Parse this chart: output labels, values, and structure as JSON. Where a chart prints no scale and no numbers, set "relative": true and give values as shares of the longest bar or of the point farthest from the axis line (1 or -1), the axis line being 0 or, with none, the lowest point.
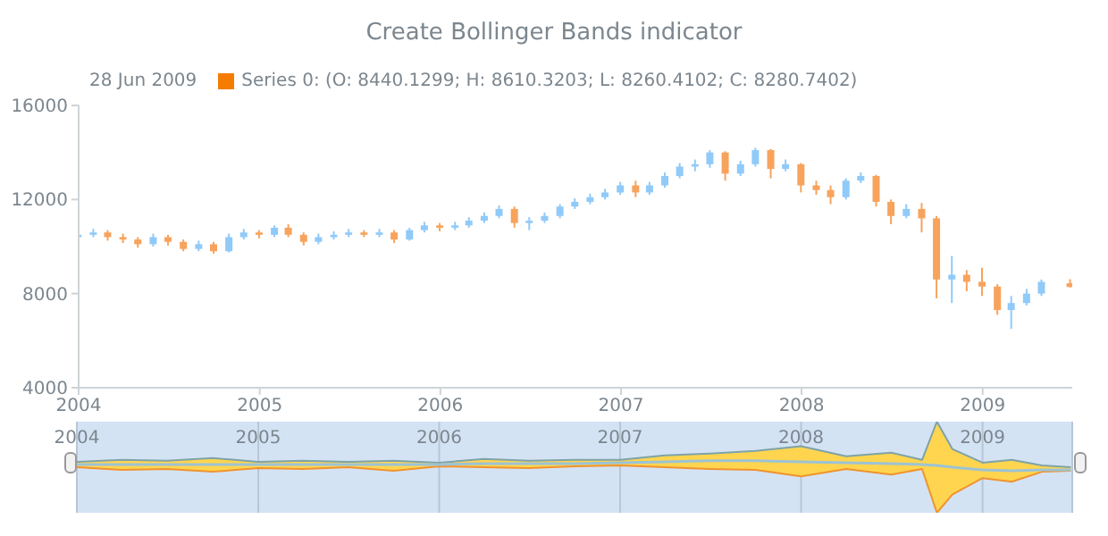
{
  "chart_data": [
    {
      "type": "candlestick",
      "title": "Create Bollinger Bands indicator",
      "annotations": [
        "28 Jun 2009"
      ],
      "legend": "top left",
      "x": [
        "2004-01",
        "2004-02",
        "2004-03",
        "2004-04",
        "2004-05",
        "2004-06",
        "2004-07",
        "2004-08",
        "2004-09",
        "2004-10",
        "2004-11",
        "2004-12",
        "2005-01",
        "2005-02",
        "2005-03",
        "2005-04",
        "2005-05",
        "2005-06",
        "2005-07",
        "2005-08",
        "2005-09",
        "2005-10",
        "2005-11",
        "2005-12",
        "2006-01",
        "2006-02",
        "2006-03",
        "2006-04",
        "2006-05",
        "2006-06",
        "2006-07",
        "2006-08",
        "2006-09",
        "2006-10",
        "2006-11",
        "2006-12",
        "2007-01",
        "2007-02",
        "2007-03",
        "2007-04",
        "2007-05",
        "2007-06",
        "2007-07",
        "2007-08",
        "2007-09",
        "2007-10",
        "2007-11",
        "2007-12",
        "2008-01",
        "2008-02",
        "2008-03",
        "2008-04",
        "2008-05",
        "2008-06",
        "2008-07",
        "2008-08",
        "2008-09",
        "2008-10",
        "2008-11",
        "2008-12",
        "2009-01",
        "2009-02",
        "2009-03",
        "2009-04",
        "2009-05",
        "2009-06-28"
      ],
      "series": [
        {
          "name": "Series 0: (O: 8440.1299; H: 8610.3203; L: 8260.4102; C: 8280.7402)",
          "color": "#f57c00",
          "ohlc": [
            [
              10400,
              10650,
              10300,
              10500
            ],
            [
              10500,
              10750,
              10400,
              10600
            ],
            [
              10600,
              10700,
              10250,
              10400
            ],
            [
              10400,
              10550,
              10150,
              10300
            ],
            [
              10300,
              10400,
              9950,
              10100
            ],
            [
              10100,
              10550,
              10000,
              10400
            ],
            [
              10400,
              10500,
              10050,
              10200
            ],
            [
              10200,
              10300,
              9800,
              9900
            ],
            [
              9900,
              10250,
              9800,
              10100
            ],
            [
              10100,
              10200,
              9700,
              9800
            ],
            [
              9800,
              10550,
              9750,
              10400
            ],
            [
              10400,
              10750,
              10300,
              10600
            ],
            [
              10600,
              10700,
              10350,
              10500
            ],
            [
              10500,
              10900,
              10400,
              10800
            ],
            [
              10800,
              10950,
              10400,
              10500
            ],
            [
              10500,
              10600,
              10050,
              10200
            ],
            [
              10200,
              10550,
              10100,
              10400
            ],
            [
              10400,
              10650,
              10300,
              10500
            ],
            [
              10500,
              10750,
              10400,
              10600
            ],
            [
              10600,
              10700,
              10400,
              10500
            ],
            [
              10500,
              10750,
              10400,
              10600
            ],
            [
              10600,
              10700,
              10150,
              10300
            ],
            [
              10300,
              10800,
              10250,
              10700
            ],
            [
              10700,
              11050,
              10600,
              10900
            ],
            [
              10900,
              11000,
              10650,
              10800
            ],
            [
              10800,
              11050,
              10700,
              10900
            ],
            [
              10900,
              11250,
              10800,
              11100
            ],
            [
              11100,
              11450,
              11000,
              11300
            ],
            [
              11300,
              11750,
              11200,
              11600
            ],
            [
              11600,
              11700,
              10800,
              11000
            ],
            [
              11000,
              11250,
              10700,
              11100
            ],
            [
              11100,
              11450,
              11000,
              11300
            ],
            [
              11300,
              11800,
              11200,
              11700
            ],
            [
              11700,
              12050,
              11600,
              11900
            ],
            [
              11900,
              12250,
              11800,
              12100
            ],
            [
              12100,
              12450,
              12000,
              12300
            ],
            [
              12300,
              12750,
              12200,
              12600
            ],
            [
              12600,
              12800,
              12100,
              12300
            ],
            [
              12300,
              12750,
              12200,
              12600
            ],
            [
              12600,
              13150,
              12500,
              13000
            ],
            [
              13000,
              13550,
              12900,
              13400
            ],
            [
              13400,
              13700,
              13200,
              13500
            ],
            [
              13500,
              14100,
              13350,
              14000
            ],
            [
              14000,
              14050,
              12800,
              13100
            ],
            [
              13100,
              13650,
              13000,
              13500
            ],
            [
              13500,
              14200,
              13400,
              14100
            ],
            [
              14100,
              14150,
              12900,
              13300
            ],
            [
              13300,
              13700,
              13200,
              13500
            ],
            [
              13500,
              13550,
              12300,
              12600
            ],
            [
              12600,
              12800,
              12200,
              12400
            ],
            [
              12400,
              12600,
              11800,
              12100
            ],
            [
              12100,
              12900,
              12000,
              12800
            ],
            [
              12800,
              13150,
              12700,
              13000
            ],
            [
              13000,
              13050,
              11700,
              11900
            ],
            [
              11900,
              12000,
              10950,
              11300
            ],
            [
              11300,
              11800,
              11200,
              11600
            ],
            [
              11600,
              11850,
              10600,
              11200
            ],
            [
              11200,
              11300,
              7800,
              8600
            ],
            [
              8600,
              9600,
              7600,
              8800
            ],
            [
              8800,
              9000,
              8100,
              8500
            ],
            [
              8500,
              9100,
              7900,
              8300
            ],
            [
              8300,
              8400,
              7100,
              7300
            ],
            [
              7300,
              7900,
              6500,
              7600
            ],
            [
              7600,
              8200,
              7500,
              8000
            ],
            [
              8000,
              8600,
              7900,
              8500
            ],
            [
              8440.1299,
              8610.3203,
              8260.4102,
              8280.7402
            ]
          ],
          "colors": [
            "#90caf9",
            "#90caf9",
            "#f7a35c",
            "#f7a35c",
            "#f7a35c",
            "#90caf9",
            "#f7a35c",
            "#f7a35c",
            "#90caf9",
            "#f7a35c",
            "#90caf9",
            "#90caf9",
            "#f7a35c",
            "#90caf9",
            "#f7a35c",
            "#f7a35c",
            "#90caf9",
            "#90caf9",
            "#90caf9",
            "#f7a35c",
            "#90caf9",
            "#f7a35c",
            "#90caf9",
            "#90caf9",
            "#f7a35c",
            "#90caf9",
            "#90caf9",
            "#90caf9",
            "#90caf9",
            "#f7a35c",
            "#90caf9",
            "#90caf9",
            "#90caf9",
            "#90caf9",
            "#90caf9",
            "#90caf9",
            "#90caf9",
            "#f7a35c",
            "#90caf9",
            "#90caf9",
            "#90caf9",
            "#90caf9",
            "#90caf9",
            "#f7a35c",
            "#90caf9",
            "#90caf9",
            "#f7a35c",
            "#90caf9",
            "#f7a35c",
            "#f7a35c",
            "#f7a35c",
            "#90caf9",
            "#90caf9",
            "#f7a35c",
            "#f7a35c",
            "#90caf9",
            "#f7a35c",
            "#f7a35c",
            "#90caf9",
            "#f7a35c",
            "#f7a35c",
            "#f7a35c",
            "#90caf9",
            "#90caf9",
            "#90caf9",
            "#f7a35c"
          ]
        }
      ],
      "xlim": [
        "2004-01",
        "2009-07"
      ],
      "xticks": [
        "2004",
        "2005",
        "2006",
        "2007",
        "2008",
        "2009"
      ],
      "ylim": [
        4000,
        16000
      ],
      "yticks": [
        4000,
        8000,
        12000,
        16000
      ],
      "grid": false
    },
    {
      "type": "line",
      "relative": true,
      "grid": "x",
      "x": [
        "2004-01",
        "2004-04",
        "2004-07",
        "2004-10",
        "2005-01",
        "2005-04",
        "2005-07",
        "2005-10",
        "2006-01",
        "2006-04",
        "2006-07",
        "2006-10",
        "2007-01",
        "2007-04",
        "2007-07",
        "2007-10",
        "2008-01",
        "2008-04",
        "2008-07",
        "2008-09",
        "2008-10",
        "2008-11",
        "2009-01",
        "2009-03",
        "2009-05",
        "2009-06-28"
      ],
      "xlim": [
        "2004-01",
        "2009-07"
      ],
      "xticks": [
        "2004",
        "2005",
        "2006",
        "2007",
        "2008",
        "2009"
      ],
      "series": [
        {
          "color": "#9cc3d5",
          "values": [
            0.53,
            0.53,
            0.53,
            0.53,
            0.53,
            0.53,
            0.53,
            0.53,
            0.53,
            0.54,
            0.54,
            0.54,
            0.55,
            0.56,
            0.57,
            0.57,
            0.56,
            0.55,
            0.54,
            0.53,
            0.52,
            0.5,
            0.47,
            0.46,
            0.47,
            0.47
          ],
          "lower": [
            0.5,
            0.47,
            0.48,
            0.45,
            0.49,
            0.48,
            0.5,
            0.46,
            0.51,
            0.5,
            0.49,
            0.51,
            0.52,
            0.5,
            0.48,
            0.47,
            0.4,
            0.48,
            0.42,
            0.48,
            0,
            0.2,
            0.38,
            0.34,
            0.45,
            0.46
          ],
          "upper": [
            0.56,
            0.58,
            0.57,
            0.6,
            0.56,
            0.57,
            0.56,
            0.57,
            0.55,
            0.59,
            0.57,
            0.58,
            0.58,
            0.63,
            0.65,
            0.68,
            0.73,
            0.62,
            0.66,
            0.58,
            1,
            0.7,
            0.55,
            0.58,
            0.52,
            0.5
          ]
        },
        {
          "color": "#7ea3a8",
          "values": [
            0.56,
            0.58,
            0.57,
            0.6,
            0.56,
            0.57,
            0.56,
            0.57,
            0.55,
            0.59,
            0.57,
            0.58,
            0.58,
            0.63,
            0.65,
            0.68,
            0.73,
            0.62,
            0.66,
            0.58,
            1,
            0.7,
            0.55,
            0.58,
            0.52,
            0.5
          ]
        },
        {
          "color": "#f0932e",
          "values": [
            0.5,
            0.47,
            0.48,
            0.45,
            0.49,
            0.48,
            0.5,
            0.46,
            0.51,
            0.5,
            0.49,
            0.51,
            0.52,
            0.5,
            0.48,
            0.47,
            0.4,
            0.48,
            0.42,
            0.48,
            0,
            0.2,
            0.38,
            0.34,
            0.45,
            0.46
          ]
        }
      ]
    }
  ]
}
